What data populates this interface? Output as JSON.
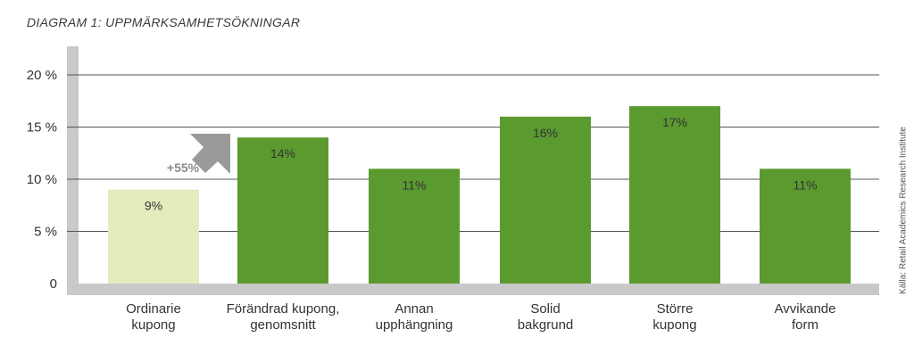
{
  "chart_data": {
    "type": "bar",
    "title": "DIAGRAM 1: UPPMÄRKSAMHETSÖKNINGAR",
    "categories": [
      [
        "Ordinarie",
        "kupong"
      ],
      [
        "Förändrad kupong,",
        "genomsnitt"
      ],
      [
        "Annan",
        "upphängning"
      ],
      [
        "Solid",
        "bakgrund"
      ],
      [
        "Större",
        "kupong"
      ],
      [
        "Avvikande",
        "form"
      ]
    ],
    "values": [
      9,
      14,
      11,
      16,
      17,
      11
    ],
    "value_labels": [
      "9%",
      "14%",
      "11%",
      "16%",
      "17%",
      "11%"
    ],
    "yticks": [
      0,
      5,
      10,
      15,
      20
    ],
    "ytick_labels": [
      "0",
      "5 %",
      "10 %",
      "15 %",
      "20 %"
    ],
    "ylim": [
      0,
      20
    ],
    "grid": true,
    "annotation": "+55%",
    "source": "Källa: Retail Academics Research Institute",
    "colors": {
      "baseline_bar": "#e2ecbd",
      "bars": "#5b9a2f",
      "arrow": "#9a9a9a",
      "axis": "#c9c9c9",
      "grid": "#555555",
      "text": "#333333"
    }
  }
}
